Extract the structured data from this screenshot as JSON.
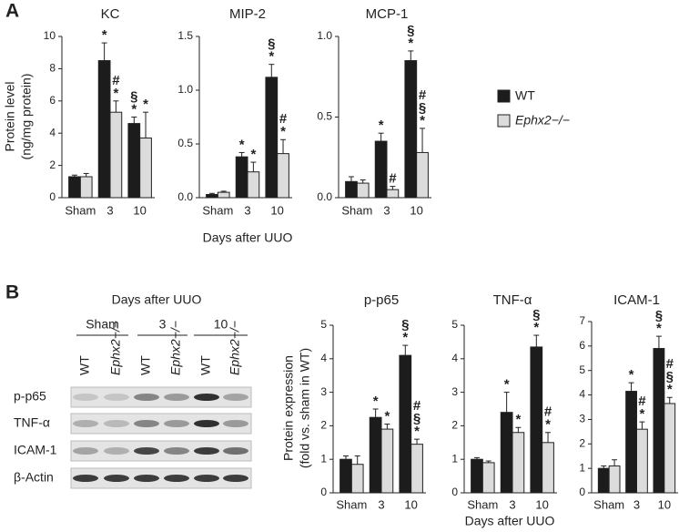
{
  "panel_a": {
    "label": "A",
    "y_label": [
      "Protein level",
      "(ng/mg protein)"
    ],
    "x_label": "Days after UUO"
  },
  "panel_b": {
    "label": "B",
    "y_label": [
      "Protein expression",
      "(fold vs. sham in WT)"
    ],
    "x_label": "Days after UUO"
  },
  "groups": [
    {
      "name": "WT",
      "color": "#1c1c1c"
    },
    {
      "name": "Ephx2−/−",
      "color": "#dcdcdc"
    }
  ],
  "blot": {
    "title": "Days after UUO",
    "column_groups": [
      "Sham",
      "3",
      "10"
    ],
    "lanes": [
      "WT",
      "Ephx2−/−",
      "WT",
      "Ephx2−/−",
      "WT",
      "Ephx2−/−"
    ],
    "rows": [
      "p-p65",
      "TNF-α",
      "ICAM-1",
      "β-Actin"
    ]
  },
  "chart_data": [
    {
      "type": "bar",
      "title": "KC",
      "categories": [
        "Sham",
        "3",
        "10"
      ],
      "ylim": [
        0,
        10
      ],
      "yticks": [
        0,
        2,
        4,
        6,
        8,
        10
      ],
      "series": [
        {
          "values": [
            1.3,
            8.5,
            4.6
          ],
          "errors": [
            0.1,
            1.1,
            0.4
          ],
          "annotations": [
            [],
            [
              "*"
            ],
            [
              "§",
              "*"
            ]
          ]
        },
        {
          "values": [
            1.3,
            5.3,
            3.7
          ],
          "errors": [
            0.2,
            0.7,
            1.6
          ],
          "annotations": [
            [],
            [
              "#",
              "*"
            ],
            [
              "*"
            ]
          ]
        }
      ]
    },
    {
      "type": "bar",
      "title": "MIP-2",
      "categories": [
        "Sham",
        "3",
        "10"
      ],
      "ylim": [
        0,
        1.5
      ],
      "yticks": [
        {
          "value": 0,
          "label": "0.0"
        },
        0.5,
        {
          "value": 1,
          "label": "1.0"
        },
        1.5
      ],
      "series": [
        {
          "values": [
            0.03,
            0.38,
            1.12
          ],
          "errors": [
            0.01,
            0.04,
            0.12
          ],
          "annotations": [
            [],
            [
              "*"
            ],
            [
              "§",
              "*"
            ]
          ]
        },
        {
          "values": [
            0.05,
            0.24,
            0.41
          ],
          "errors": [
            0.01,
            0.09,
            0.13
          ],
          "annotations": [
            [],
            [
              "*"
            ],
            [
              "#",
              "*"
            ]
          ]
        }
      ]
    },
    {
      "type": "bar",
      "title": "MCP-1",
      "categories": [
        "Sham",
        "3",
        "10"
      ],
      "ylim": [
        0,
        1
      ],
      "yticks": [
        {
          "value": 0,
          "label": "0.0"
        },
        0.5,
        {
          "value": 1,
          "label": "1.0"
        }
      ],
      "series": [
        {
          "values": [
            0.1,
            0.35,
            0.85
          ],
          "errors": [
            0.03,
            0.05,
            0.06
          ],
          "annotations": [
            [],
            [
              "*"
            ],
            [
              "§",
              "*"
            ]
          ]
        },
        {
          "values": [
            0.09,
            0.05,
            0.28
          ],
          "errors": [
            0.02,
            0.02,
            0.15
          ],
          "annotations": [
            [],
            [
              "#"
            ],
            [
              "#",
              "§",
              "*"
            ]
          ]
        }
      ]
    },
    {
      "type": "bar",
      "title": "p-p65",
      "categories": [
        "Sham",
        "3",
        "10"
      ],
      "ylim": [
        0,
        5
      ],
      "yticks": [
        0,
        1,
        2,
        3,
        4,
        5
      ],
      "series": [
        {
          "values": [
            1.0,
            2.25,
            4.1
          ],
          "errors": [
            0.1,
            0.25,
            0.3
          ],
          "annotations": [
            [],
            [
              "*"
            ],
            [
              "§",
              "*"
            ]
          ]
        },
        {
          "values": [
            0.85,
            1.9,
            1.45
          ],
          "errors": [
            0.25,
            0.15,
            0.15
          ],
          "annotations": [
            [],
            [
              "*"
            ],
            [
              "#",
              "§",
              "*"
            ]
          ]
        }
      ]
    },
    {
      "type": "bar",
      "title": "TNF-α",
      "categories": [
        "Sham",
        "3",
        "10"
      ],
      "ylim": [
        0,
        5
      ],
      "yticks": [
        0,
        1,
        2,
        3,
        4,
        5
      ],
      "series": [
        {
          "values": [
            1.0,
            2.4,
            4.35
          ],
          "errors": [
            0.05,
            0.6,
            0.35
          ],
          "annotations": [
            [],
            [
              "*"
            ],
            [
              "§",
              "*"
            ]
          ]
        },
        {
          "values": [
            0.9,
            1.8,
            1.5
          ],
          "errors": [
            0.05,
            0.15,
            0.3
          ],
          "annotations": [
            [],
            [
              "*"
            ],
            [
              "#",
              "*"
            ]
          ]
        }
      ]
    },
    {
      "type": "bar",
      "title": "ICAM-1",
      "categories": [
        "Sham",
        "3",
        "10"
      ],
      "ylim": [
        0,
        7
      ],
      "yticks": [
        0,
        1,
        2,
        3,
        4,
        5,
        6,
        7
      ],
      "series": [
        {
          "values": [
            1.0,
            4.15,
            5.9
          ],
          "errors": [
            0.1,
            0.35,
            0.5
          ],
          "annotations": [
            [],
            [
              "*"
            ],
            [
              "§",
              "*"
            ]
          ]
        },
        {
          "values": [
            1.1,
            2.6,
            3.65
          ],
          "errors": [
            0.25,
            0.3,
            0.25
          ],
          "annotations": [
            [],
            [
              "#",
              "*"
            ],
            [
              "#",
              "§",
              "*"
            ]
          ]
        }
      ]
    }
  ]
}
